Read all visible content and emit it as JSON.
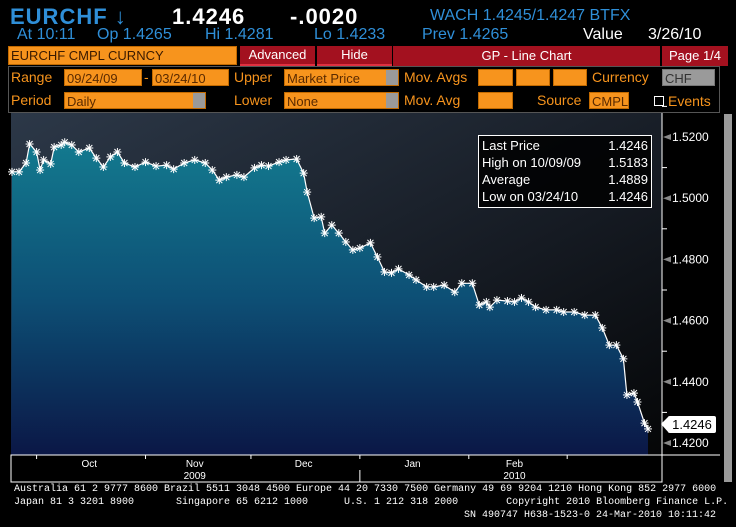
{
  "header": {
    "ticker": "EURCHF",
    "direction_icon": "down-arrow-icon",
    "direction_glyph": "↓",
    "price": "1.4246",
    "change": "-.0020",
    "quote": "WACH 1.4245/1.4247 BTFX",
    "time": "At 10:11",
    "open": "Op 1.4265",
    "high": "Hi 1.4281",
    "low": "Lo 1.4233",
    "prev": "Prev 1.4265",
    "value_label": "Value",
    "value_date": "3/26/10"
  },
  "toolbar": {
    "security": "EURCHF CMPL CURNCY",
    "advanced": "Advanced",
    "hide": "Hide",
    "function_title": "GP - Line Chart",
    "page": "Page 1/4"
  },
  "settings": {
    "range_label": "Range",
    "range_start": "09/24/09",
    "range_sep": "-",
    "range_end": "03/24/10",
    "upper_label": "Upper",
    "upper_value": "Market Price",
    "mov_avgs_label": "Mov. Avgs",
    "currency_label": "Currency",
    "currency_value": "CHF",
    "period_label": "Period",
    "period_value": "Daily",
    "lower_label": "Lower",
    "lower_value": "None",
    "mov_avg_label": "Mov. Avg",
    "source_label": "Source",
    "source_value": "CMPL",
    "events_label": "Events",
    "events_checked": false
  },
  "legend": {
    "rows": [
      {
        "label": "Last Price",
        "value": "1.4246"
      },
      {
        "label": "High on 10/09/09",
        "value": "1.5183"
      },
      {
        "label": "Average",
        "value": "1.4889"
      },
      {
        "label": "Low on 03/24/10",
        "value": "1.4246"
      }
    ]
  },
  "last_price_tag": "1.4246",
  "colors": {
    "accent_blue": "#2f8fd8",
    "orange": "#f7941d",
    "red": "#a3111f",
    "area_top": "#137a8f",
    "area_bottom": "#0b1746"
  },
  "chart_data": {
    "type": "area",
    "title": "",
    "xlabel": "",
    "ylabel": "",
    "x_range": [
      "2009-09-24",
      "2010-03-24"
    ],
    "ylim": [
      1.416,
      1.531
    ],
    "grid": false,
    "legend_placement": "top-right",
    "y_ticks": [
      "1.5200",
      "1.5000",
      "1.4800",
      "1.4600",
      "1.4400",
      "1.4200"
    ],
    "x_month_ticks": [
      {
        "label": "Oct",
        "date": "2009-10-16"
      },
      {
        "label": "Nov",
        "date": "2009-11-15"
      },
      {
        "label": "Dec",
        "date": "2009-12-16"
      },
      {
        "label": "Jan",
        "date": "2010-01-16"
      },
      {
        "label": "Feb",
        "date": "2010-02-14"
      }
    ],
    "x_year_ticks": [
      {
        "label": "2009",
        "date": "2009-11-15"
      },
      {
        "label": "2010",
        "date": "2010-02-14"
      }
    ],
    "x": [
      "2009-09-24",
      "2009-09-26",
      "2009-09-28",
      "2009-09-29",
      "2009-10-01",
      "2009-10-02",
      "2009-10-03",
      "2009-10-05",
      "2009-10-06",
      "2009-10-08",
      "2009-10-09",
      "2009-10-11",
      "2009-10-13",
      "2009-10-16",
      "2009-10-18",
      "2009-10-20",
      "2009-10-22",
      "2009-10-24",
      "2009-10-26",
      "2009-10-29",
      "2009-11-01",
      "2009-11-04",
      "2009-11-07",
      "2009-11-09",
      "2009-11-12",
      "2009-11-15",
      "2009-11-18",
      "2009-11-20",
      "2009-11-22",
      "2009-11-24",
      "2009-11-27",
      "2009-11-29",
      "2009-12-02",
      "2009-12-04",
      "2009-12-06",
      "2009-12-09",
      "2009-12-11",
      "2009-12-14",
      "2009-12-16",
      "2009-12-17",
      "2009-12-19",
      "2009-12-21",
      "2009-12-22",
      "2009-12-24",
      "2009-12-26",
      "2009-12-28",
      "2009-12-30",
      "2010-01-01",
      "2010-01-04",
      "2010-01-06",
      "2010-01-08",
      "2010-01-10",
      "2010-01-12",
      "2010-01-15",
      "2010-01-17",
      "2010-01-20",
      "2010-01-22",
      "2010-01-25",
      "2010-01-28",
      "2010-01-30",
      "2010-02-02",
      "2010-02-04",
      "2010-02-06",
      "2010-02-07",
      "2010-02-09",
      "2010-02-12",
      "2010-02-14",
      "2010-02-16",
      "2010-02-18",
      "2010-02-20",
      "2010-02-23",
      "2010-02-26",
      "2010-02-28",
      "2010-03-03",
      "2010-03-06",
      "2010-03-09",
      "2010-03-11",
      "2010-03-13",
      "2010-03-15",
      "2010-03-17",
      "2010-03-18",
      "2010-03-20",
      "2010-03-21",
      "2010-03-23",
      "2010-03-24"
    ],
    "series": [
      {
        "name": "Last Price",
        "values": [
          1.5086,
          1.5086,
          1.5115,
          1.5177,
          1.5151,
          1.5092,
          1.5125,
          1.5112,
          1.5167,
          1.5174,
          1.5183,
          1.5174,
          1.5151,
          1.5164,
          1.5131,
          1.5102,
          1.5135,
          1.5151,
          1.5115,
          1.5102,
          1.5118,
          1.5105,
          1.5108,
          1.5095,
          1.5115,
          1.5125,
          1.5115,
          1.5092,
          1.5059,
          1.5069,
          1.5076,
          1.5069,
          1.5099,
          1.5108,
          1.5105,
          1.5118,
          1.5125,
          1.5128,
          1.5082,
          1.502,
          1.4935,
          1.4939,
          1.4886,
          1.4912,
          1.4886,
          1.4857,
          1.4831,
          1.4837,
          1.4854,
          1.4808,
          1.4759,
          1.4756,
          1.4769,
          1.4749,
          1.4733,
          1.471,
          1.471,
          1.4716,
          1.4693,
          1.4722,
          1.4722,
          1.4651,
          1.4661,
          1.4644,
          1.4667,
          1.4664,
          1.4661,
          1.4674,
          1.4661,
          1.4644,
          1.4635,
          1.4635,
          1.4628,
          1.4628,
          1.4618,
          1.4618,
          1.4576,
          1.452,
          1.452,
          1.4475,
          1.4357,
          1.4363,
          1.4334,
          1.4265,
          1.4246
        ]
      }
    ]
  },
  "footer": {
    "line1": "Australia 61 2 9777 8600 Brazil 5511 3048 4500 Europe 44 20 7330 7500 Germany 49 69 9204 1210 Hong Kong 852 2977 6000",
    "line2": "Japan 81 3 3201 8900       Singapore 65 6212 1000      U.S. 1 212 318 2000        Copyright 2010 Bloomberg Finance L.P.",
    "line3": "SN 490747 H638-1523-0 24-Mar-2010 10:11:42"
  }
}
